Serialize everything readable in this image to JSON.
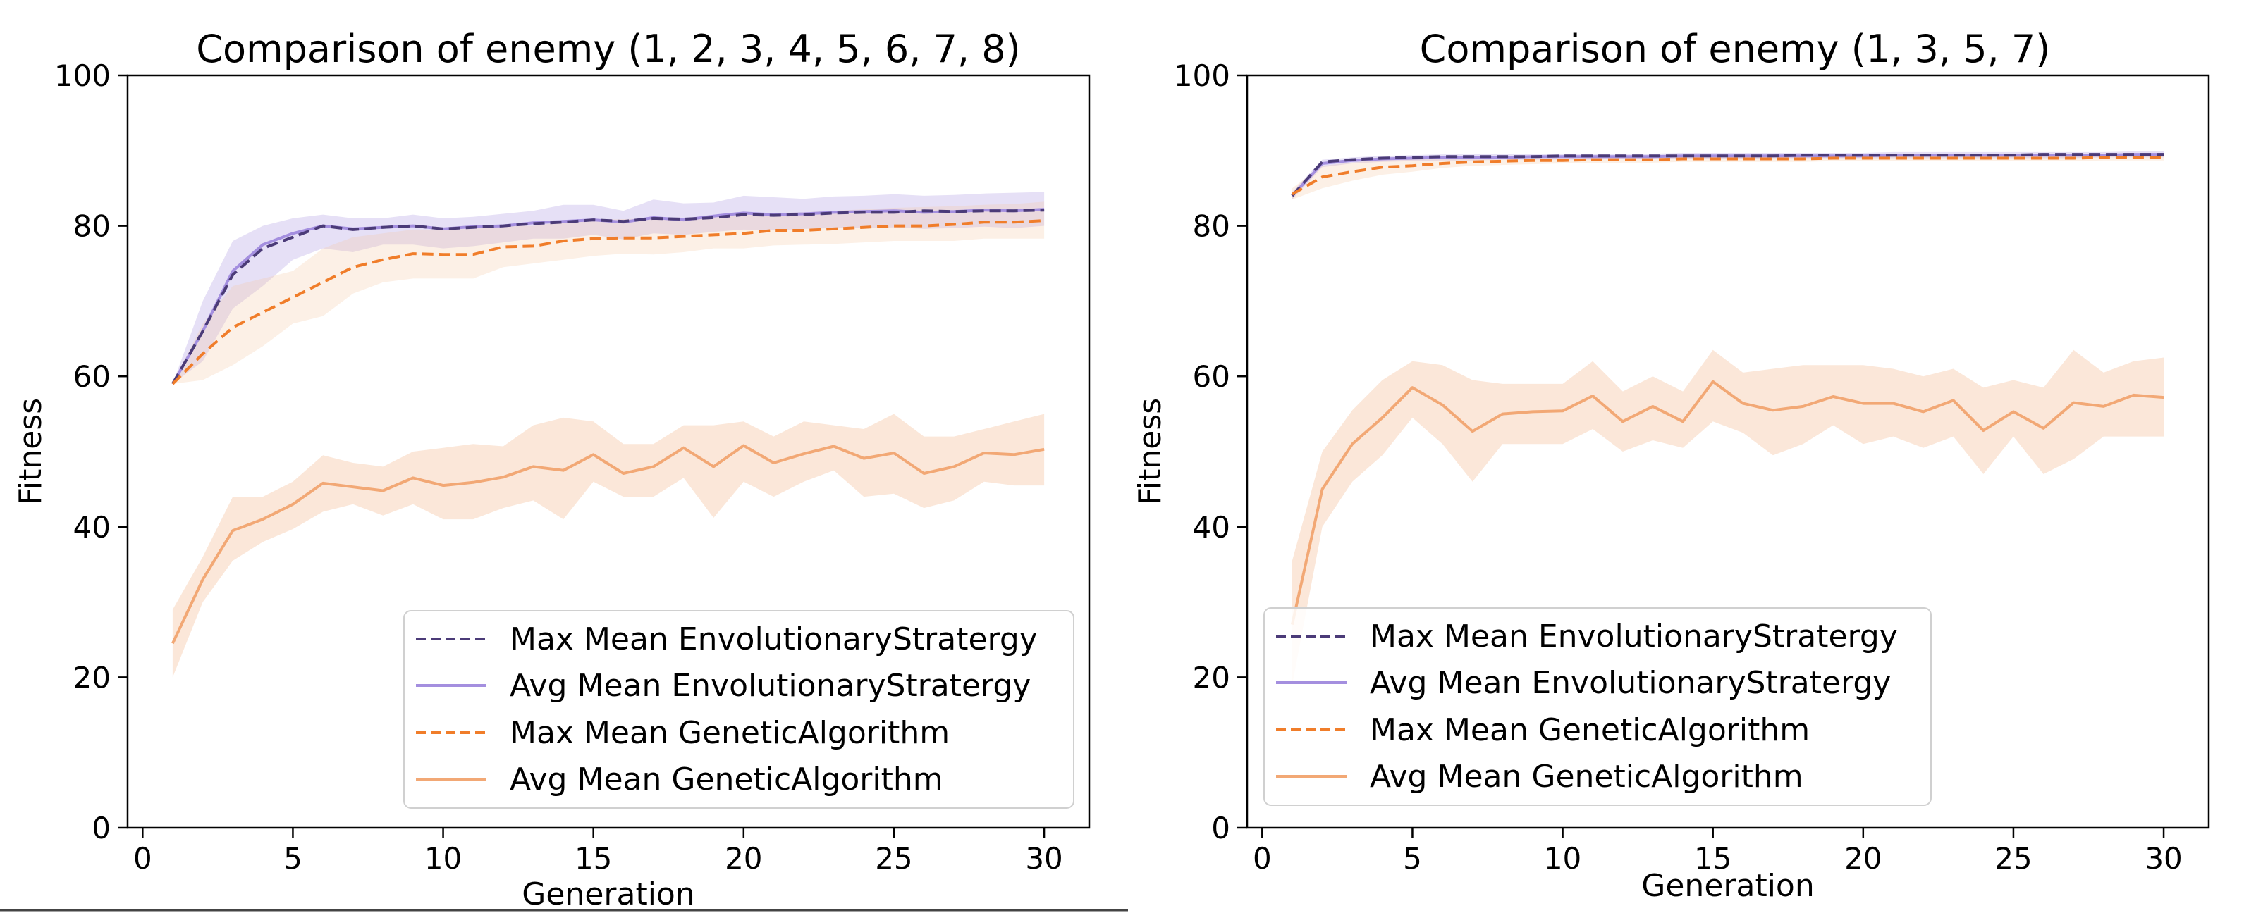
{
  "chart_data": [
    {
      "type": "line",
      "title": "Comparison of enemy (1, 2, 3, 4, 5, 6, 7, 8)",
      "xlabel": "Generation",
      "ylabel": "Fitness",
      "xlim": [
        -0.5,
        31.5
      ],
      "ylim": [
        0,
        100
      ],
      "xticks": [
        0,
        5,
        10,
        15,
        20,
        25,
        30
      ],
      "yticks": [
        0,
        20,
        40,
        60,
        80,
        100
      ],
      "grid": false,
      "legend_position": "lower-right",
      "x": [
        1,
        2,
        3,
        4,
        5,
        6,
        7,
        8,
        9,
        10,
        11,
        12,
        13,
        14,
        15,
        16,
        17,
        18,
        19,
        20,
        21,
        22,
        23,
        24,
        25,
        26,
        27,
        28,
        29,
        30
      ],
      "series": [
        {
          "name": "Max Mean EnvolutionaryStratergy",
          "style": "dashed",
          "color": "#4b3b78",
          "values": [
            59,
            66,
            73.5,
            77,
            78.5,
            80,
            79.5,
            79.8,
            80,
            79.6,
            79.8,
            80,
            80.3,
            80.5,
            80.8,
            80.6,
            81,
            80.9,
            81.1,
            81.5,
            81.4,
            81.5,
            81.7,
            81.8,
            81.8,
            82,
            81.9,
            82,
            82,
            82.1
          ],
          "band": null
        },
        {
          "name": "Avg Mean EnvolutionaryStratergy",
          "style": "solid",
          "color": "#a48fdf",
          "values": [
            59,
            66,
            74,
            77.5,
            79,
            80,
            79.6,
            79.8,
            80,
            79.6,
            79.9,
            80,
            80.4,
            80.6,
            80.8,
            80.5,
            81.1,
            80.8,
            81.3,
            81.7,
            81.5,
            81.6,
            81.8,
            81.9,
            82,
            81.8,
            81.9,
            82.1,
            82,
            82.2
          ],
          "band": {
            "lower": [
              59,
              62,
              69,
              72,
              75.5,
              77,
              76.5,
              77.5,
              77.5,
              77,
              77.3,
              77.8,
              78.3,
              78.3,
              78.8,
              78.2,
              79,
              78.8,
              79.2,
              79.5,
              79.4,
              79.6,
              79.7,
              79.7,
              79.8,
              79.6,
              79.7,
              79.9,
              79.7,
              80
            ],
            "upper": [
              59,
              70,
              78,
              80,
              81,
              81.5,
              81,
              81,
              81.5,
              81,
              81.2,
              81.6,
              82,
              82.8,
              82.8,
              82,
              83.5,
              83,
              83.1,
              84,
              83.8,
              83.6,
              83.9,
              84,
              84.2,
              84,
              84.1,
              84.3,
              84.4,
              84.5
            ],
            "color": "#a48fdf"
          }
        },
        {
          "name": "Max Mean GeneticAlgorithm",
          "style": "dashed",
          "color": "#f07d2a",
          "values": [
            59,
            63,
            66.5,
            68.5,
            70.5,
            72.5,
            74.5,
            75.5,
            76.3,
            76.2,
            76.2,
            77.2,
            77.3,
            78,
            78.3,
            78.4,
            78.4,
            78.6,
            78.8,
            79,
            79.4,
            79.4,
            79.6,
            79.8,
            80,
            80,
            80.2,
            80.5,
            80.5,
            80.7
          ],
          "band": {
            "lower": [
              59,
              59.5,
              61.5,
              64,
              67,
              68,
              71,
              72.5,
              73,
              73,
              73,
              74.5,
              75,
              75.5,
              76,
              76.3,
              76.2,
              76.5,
              77,
              77,
              77.4,
              77.5,
              77.6,
              77.8,
              78,
              78,
              78,
              78.3,
              78.3,
              78.3
            ],
            "upper": [
              59,
              67,
              72,
              73,
              74,
              77,
              78.5,
              79,
              79.5,
              79.5,
              79.6,
              80,
              80,
              80.5,
              80.8,
              80.9,
              81,
              81,
              81.2,
              81.5,
              81.7,
              81.8,
              82,
              82.2,
              82.4,
              82.5,
              82.6,
              82.8,
              82.9,
              83.2
            ],
            "color": "#f5c9a6"
          }
        },
        {
          "name": "Avg Mean GeneticAlgorithm",
          "style": "solid",
          "color": "#f2a875",
          "values": [
            24.5,
            33,
            39.5,
            41,
            43,
            45.8,
            45.3,
            44.8,
            46.5,
            45.5,
            45.9,
            46.6,
            48,
            47.5,
            49.6,
            47.1,
            48,
            50.5,
            48,
            50.8,
            48.5,
            49.7,
            50.7,
            49.1,
            49.8,
            47.1,
            48,
            49.8,
            49.6,
            50.3
          ],
          "band": {
            "lower": [
              20,
              30,
              35.5,
              38,
              39.7,
              42,
              43,
              41.5,
              43,
              41,
              41,
              42.5,
              43.5,
              41,
              46,
              44,
              44,
              46.5,
              41.2,
              46,
              44,
              46,
              47.5,
              44,
              44.4,
              42.5,
              43.5,
              46,
              45.5,
              45.5
            ],
            "upper": [
              29,
              36,
              44,
              44,
              46,
              49.5,
              48.5,
              48,
              50,
              50.5,
              51,
              50.7,
              53.5,
              54.5,
              54,
              51,
              51,
              53.5,
              53.5,
              54,
              52,
              54,
              53.5,
              53,
              55,
              52,
              52,
              53,
              54,
              55
            ]
          }
        }
      ]
    },
    {
      "type": "line",
      "title": "Comparison of enemy (1, 3, 5, 7)",
      "xlabel": "Generation",
      "ylabel": "Fitness",
      "xlim": [
        -0.5,
        31.5
      ],
      "ylim": [
        0,
        100
      ],
      "xticks": [
        0,
        5,
        10,
        15,
        20,
        25,
        30
      ],
      "yticks": [
        0,
        20,
        40,
        60,
        80,
        100
      ],
      "grid": false,
      "legend_position": "lower-left",
      "x": [
        1,
        2,
        3,
        4,
        5,
        6,
        7,
        8,
        9,
        10,
        11,
        12,
        13,
        14,
        15,
        16,
        17,
        18,
        19,
        20,
        21,
        22,
        23,
        24,
        25,
        26,
        27,
        28,
        29,
        30
      ],
      "series": [
        {
          "name": "Max Mean EnvolutionaryStratergy",
          "style": "dashed",
          "color": "#4b3b78",
          "values": [
            84,
            88.5,
            88.8,
            89,
            89.1,
            89.2,
            89.2,
            89.2,
            89.2,
            89.3,
            89.3,
            89.3,
            89.3,
            89.3,
            89.3,
            89.3,
            89.3,
            89.4,
            89.4,
            89.4,
            89.4,
            89.4,
            89.4,
            89.4,
            89.4,
            89.5,
            89.5,
            89.5,
            89.5,
            89.5
          ],
          "band": null
        },
        {
          "name": "Avg Mean EnvolutionaryStratergy",
          "style": "solid",
          "color": "#a48fdf",
          "values": [
            84,
            88.3,
            88.7,
            88.9,
            89,
            89.1,
            89.1,
            89.1,
            89.2,
            89.2,
            89.2,
            89.2,
            89.2,
            89.3,
            89.3,
            89.3,
            89.3,
            89.3,
            89.3,
            89.3,
            89.4,
            89.4,
            89.4,
            89.4,
            89.4,
            89.4,
            89.4,
            89.4,
            89.5,
            89.5
          ],
          "band": {
            "lower": [
              83.5,
              87.8,
              88.3,
              88.5,
              88.6,
              88.7,
              88.7,
              88.8,
              88.8,
              88.8,
              88.8,
              88.9,
              88.9,
              88.9,
              88.9,
              88.9,
              89,
              89,
              89,
              89,
              89,
              89,
              89,
              89,
              89,
              89,
              89,
              89.1,
              89.1,
              89.1
            ],
            "upper": [
              84.5,
              88.8,
              89.1,
              89.3,
              89.4,
              89.5,
              89.5,
              89.6,
              89.6,
              89.6,
              89.6,
              89.6,
              89.6,
              89.7,
              89.7,
              89.7,
              89.7,
              89.7,
              89.7,
              89.7,
              89.8,
              89.8,
              89.8,
              89.8,
              89.8,
              89.8,
              89.8,
              89.8,
              89.9,
              89.9
            ],
            "color": "#a48fdf"
          }
        },
        {
          "name": "Max Mean GeneticAlgorithm",
          "style": "dashed",
          "color": "#f07d2a",
          "values": [
            84.2,
            86.5,
            87.2,
            87.8,
            88,
            88.3,
            88.5,
            88.6,
            88.7,
            88.7,
            88.8,
            88.8,
            88.8,
            88.9,
            88.9,
            88.9,
            88.9,
            88.9,
            89,
            89,
            89,
            89,
            89,
            89,
            89,
            89,
            89,
            89.1,
            89.1,
            89.1
          ],
          "band": {
            "lower": [
              83.5,
              85,
              86,
              86.8,
              87.2,
              87.7,
              88,
              88.1,
              88.2,
              88.3,
              88.3,
              88.4,
              88.4,
              88.5,
              88.5,
              88.5,
              88.5,
              88.5,
              88.6,
              88.6,
              88.6,
              88.6,
              88.6,
              88.6,
              88.6,
              88.6,
              88.6,
              88.7,
              88.7,
              88.7
            ],
            "upper": [
              85,
              88,
              88.4,
              88.8,
              89,
              89,
              89.1,
              89.1,
              89.2,
              89.2,
              89.2,
              89.3,
              89.3,
              89.3,
              89.3,
              89.3,
              89.3,
              89.4,
              89.4,
              89.4,
              89.4,
              89.4,
              89.4,
              89.4,
              89.4,
              89.4,
              89.4,
              89.5,
              89.5,
              89.5
            ],
            "color": "#f5c9a6"
          }
        },
        {
          "name": "Avg Mean GeneticAlgorithm",
          "style": "solid",
          "color": "#f2a875",
          "values": [
            27,
            45,
            51,
            54.5,
            58.5,
            56.2,
            52.7,
            55,
            55.3,
            55.4,
            57.4,
            54,
            56,
            54,
            59.3,
            56.4,
            55.5,
            56,
            57.3,
            56.4,
            56.4,
            55.3,
            56.8,
            52.8,
            55.3,
            53.1,
            56.5,
            56,
            57.5,
            57.2
          ],
          "band": {
            "lower": [
              19,
              40,
              46,
              49.5,
              54.5,
              51,
              46,
              51,
              51,
              51,
              53,
              50,
              51.5,
              50.5,
              54,
              52.5,
              49.5,
              51,
              53.5,
              51,
              52,
              50.5,
              52,
              47,
              52,
              47,
              49,
              52,
              52,
              52
            ],
            "upper": [
              35.5,
              50,
              55.5,
              59.5,
              62,
              61.5,
              59.5,
              59,
              59,
              59,
              62,
              58,
              60,
              58,
              63.5,
              60.5,
              61,
              61.5,
              61.5,
              61.5,
              61,
              60,
              61,
              58.5,
              59.5,
              58.5,
              63.5,
              60.5,
              62,
              62.5
            ]
          }
        }
      ]
    }
  ]
}
